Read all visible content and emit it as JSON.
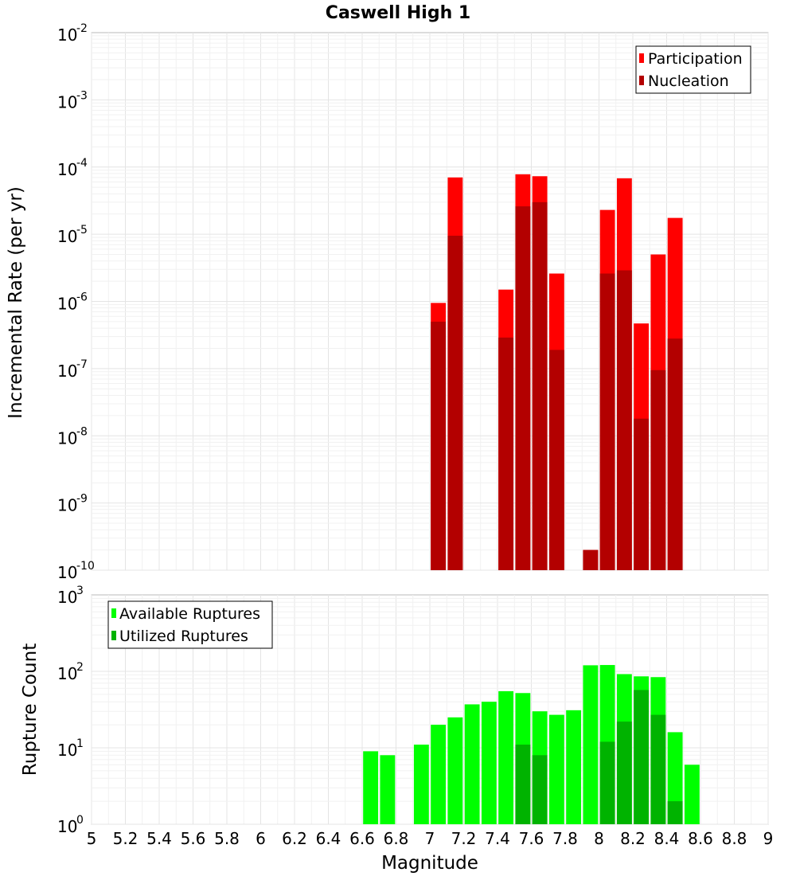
{
  "chart_data": {
    "title": "Caswell High 1",
    "xlabel": "Magnitude",
    "xlim": [
      5,
      9
    ],
    "x_ticks": [
      "5",
      "5.2",
      "5.4",
      "5.6",
      "5.8",
      "6",
      "6.2",
      "6.4",
      "6.6",
      "6.8",
      "7",
      "7.2",
      "7.4",
      "7.6",
      "7.8",
      "8",
      "8.2",
      "8.4",
      "8.6",
      "8.8",
      "9"
    ],
    "bin_width": 0.1,
    "grid": true,
    "panels": [
      {
        "type": "bar",
        "scale": "log",
        "ylabel": "Incremental Rate (per yr)",
        "ylim_exponents": [
          -10,
          -2
        ],
        "legend": {
          "placement": "top-right"
        },
        "series": [
          {
            "name": "Participation",
            "color": "#ff0000",
            "points": [
              [
                7.05,
                9.5e-07
              ],
              [
                7.15,
                7e-05
              ],
              [
                7.45,
                1.5e-06
              ],
              [
                7.55,
                7.8e-05
              ],
              [
                7.65,
                7.3e-05
              ],
              [
                7.75,
                2.6e-06
              ],
              [
                7.95,
                2e-10
              ],
              [
                8.05,
                2.3e-05
              ],
              [
                8.15,
                6.8e-05
              ],
              [
                8.25,
                4.7e-07
              ],
              [
                8.35,
                5e-06
              ],
              [
                8.45,
                1.75e-05
              ]
            ]
          },
          {
            "name": "Nucleation",
            "color": "#b30000",
            "points": [
              [
                7.05,
                5e-07
              ],
              [
                7.15,
                9.5e-06
              ],
              [
                7.45,
                2.9e-07
              ],
              [
                7.55,
                2.6e-05
              ],
              [
                7.65,
                3e-05
              ],
              [
                7.75,
                1.9e-07
              ],
              [
                7.95,
                2e-10
              ],
              [
                8.05,
                2.6e-06
              ],
              [
                8.15,
                2.9e-06
              ],
              [
                8.25,
                1.8e-08
              ],
              [
                8.35,
                9.5e-08
              ],
              [
                8.45,
                2.8e-07
              ]
            ]
          }
        ]
      },
      {
        "type": "bar",
        "scale": "log",
        "ylabel": "Rupture Count",
        "ylim_exponents": [
          0,
          3
        ],
        "legend": {
          "placement": "top-left"
        },
        "series": [
          {
            "name": "Available Ruptures",
            "color": "#00ff00",
            "points": [
              [
                6.65,
                9
              ],
              [
                6.75,
                8
              ],
              [
                6.95,
                11
              ],
              [
                7.05,
                20
              ],
              [
                7.15,
                25
              ],
              [
                7.25,
                37
              ],
              [
                7.35,
                40
              ],
              [
                7.45,
                55
              ],
              [
                7.55,
                52
              ],
              [
                7.65,
                30
              ],
              [
                7.75,
                27
              ],
              [
                7.85,
                31
              ],
              [
                7.95,
                120
              ],
              [
                8.05,
                121
              ],
              [
                8.15,
                92
              ],
              [
                8.25,
                86
              ],
              [
                8.35,
                84
              ],
              [
                8.45,
                16
              ],
              [
                8.55,
                6
              ]
            ]
          },
          {
            "name": "Utilized Ruptures",
            "color": "#00b300",
            "points": [
              [
                7.05,
                1
              ],
              [
                7.15,
                1
              ],
              [
                7.45,
                1
              ],
              [
                7.55,
                11
              ],
              [
                7.65,
                8
              ],
              [
                7.75,
                1
              ],
              [
                7.95,
                1
              ],
              [
                8.05,
                12
              ],
              [
                8.15,
                22
              ],
              [
                8.25,
                57
              ],
              [
                8.35,
                27
              ],
              [
                8.45,
                2
              ]
            ]
          }
        ]
      }
    ]
  }
}
